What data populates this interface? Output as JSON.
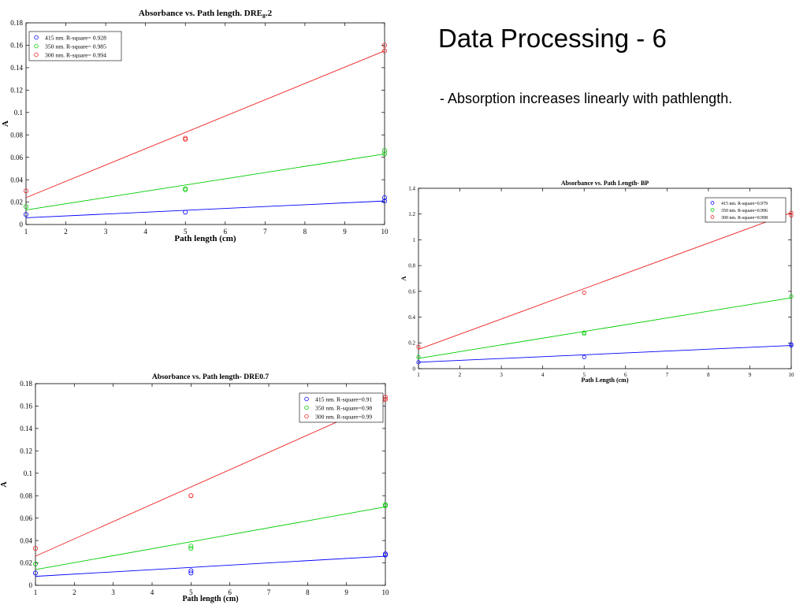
{
  "slide": {
    "title": "Data Processing - 6",
    "bullet": "- Absorption increases linearly with pathlength."
  },
  "chart_data": [
    {
      "type": "scatter",
      "title": "Absorbance vs. Path length. DRE",
      "title_subscript": "8",
      "title_suffix": ".2",
      "xlabel": "Path length (cm)",
      "ylabel": "A",
      "xlim": [
        1,
        10
      ],
      "ylim": [
        0,
        0.18
      ],
      "xticks": [
        "1",
        "2",
        "3",
        "4",
        "5",
        "6",
        "7",
        "8",
        "9",
        "10"
      ],
      "yticks": [
        "0",
        "0.02",
        "0.04",
        "0.06",
        "0.08",
        "0.1",
        "0.12",
        "0.14",
        "0.16",
        "0.18"
      ],
      "legend_position": "top-left",
      "series": [
        {
          "name": "415 nm. R-square= 0.928",
          "color": "#0000ff",
          "fit": [
            [
              1,
              0.006
            ],
            [
              10,
              0.021
            ]
          ],
          "points": [
            [
              1,
              0.009
            ],
            [
              5,
              0.011
            ],
            [
              10,
              0.021
            ],
            [
              10,
              0.024
            ]
          ]
        },
        {
          "name": "350 nm. R-square= 0.985",
          "color": "#00cc00",
          "fit": [
            [
              1,
              0.013
            ],
            [
              10,
              0.063
            ]
          ],
          "points": [
            [
              1,
              0.016
            ],
            [
              5,
              0.031
            ],
            [
              5,
              0.032
            ],
            [
              10,
              0.063
            ],
            [
              10,
              0.066
            ]
          ]
        },
        {
          "name": "300 nm. R-square= 0.994",
          "color": "#ee2222",
          "fit": [
            [
              1,
              0.024
            ],
            [
              10,
              0.155
            ]
          ],
          "points": [
            [
              1,
              0.03
            ],
            [
              5,
              0.076
            ],
            [
              5,
              0.077
            ],
            [
              10,
              0.155
            ],
            [
              10,
              0.16
            ]
          ]
        }
      ]
    },
    {
      "type": "scatter",
      "title": "Absorbance vs. Path Length- BP",
      "xlabel": "Path Length (cm)",
      "ylabel": "A",
      "xlim": [
        1,
        10
      ],
      "ylim": [
        0,
        1.4
      ],
      "xticks": [
        "1",
        "2",
        "3",
        "4",
        "5",
        "6",
        "7",
        "8",
        "9",
        "10"
      ],
      "yticks": [
        "0",
        "0.2",
        "0.4",
        "0.6",
        "0.8",
        "1",
        "1.2",
        "1.4"
      ],
      "legend_position": "top-right",
      "series": [
        {
          "name": "415 nm. R-square=0.979",
          "color": "#0000ff",
          "fit": [
            [
              1,
              0.05
            ],
            [
              10,
              0.18
            ]
          ],
          "points": [
            [
              1,
              0.05
            ],
            [
              5,
              0.09
            ],
            [
              10,
              0.18
            ],
            [
              10,
              0.19
            ]
          ]
        },
        {
          "name": "350 nm. R-square=0.996",
          "color": "#00cc00",
          "fit": [
            [
              1,
              0.08
            ],
            [
              10,
              0.55
            ]
          ],
          "points": [
            [
              1,
              0.09
            ],
            [
              5,
              0.27
            ],
            [
              5,
              0.28
            ],
            [
              10,
              0.56
            ]
          ]
        },
        {
          "name": "300 nm. R-square=0.998",
          "color": "#ee2222",
          "fit": [
            [
              1,
              0.15
            ],
            [
              10,
              1.21
            ]
          ],
          "points": [
            [
              1,
              0.17
            ],
            [
              5,
              0.59
            ],
            [
              10,
              1.19
            ],
            [
              10,
              1.21
            ]
          ]
        }
      ]
    },
    {
      "type": "scatter",
      "title": "Absorbance vs. Path length- DRE0.7",
      "xlabel": "Path length (cm)",
      "ylabel": "A",
      "xlim": [
        1,
        10
      ],
      "ylim": [
        0,
        0.18
      ],
      "xticks": [
        "1",
        "2",
        "3",
        "4",
        "5",
        "6",
        "7",
        "8",
        "9",
        "10"
      ],
      "yticks": [
        "0",
        "0.02",
        "0.04",
        "0.06",
        "0.08",
        "0.1",
        "0.12",
        "0.14",
        "0.16",
        "0.18"
      ],
      "legend_position": "top-right",
      "series": [
        {
          "name": "415 nm. R-square=0.91",
          "color": "#0000ff",
          "fit": [
            [
              1,
              0.008
            ],
            [
              10,
              0.026
            ]
          ],
          "points": [
            [
              1,
              0.011
            ],
            [
              5,
              0.011
            ],
            [
              5,
              0.013
            ],
            [
              10,
              0.027
            ],
            [
              10,
              0.028
            ]
          ]
        },
        {
          "name": "350 nm. R-square=0.98",
          "color": "#00cc00",
          "fit": [
            [
              1,
              0.014
            ],
            [
              10,
              0.07
            ]
          ],
          "points": [
            [
              1,
              0.019
            ],
            [
              5,
              0.033
            ],
            [
              5,
              0.035
            ],
            [
              10,
              0.071
            ],
            [
              10,
              0.072
            ]
          ]
        },
        {
          "name": "300 nm. R-square=0.99",
          "color": "#ee2222",
          "fit": [
            [
              1,
              0.026
            ],
            [
              10,
              0.165
            ]
          ],
          "points": [
            [
              1,
              0.033
            ],
            [
              5,
              0.08
            ],
            [
              5,
              0.08
            ],
            [
              10,
              0.166
            ],
            [
              10,
              0.168
            ]
          ]
        }
      ]
    }
  ]
}
